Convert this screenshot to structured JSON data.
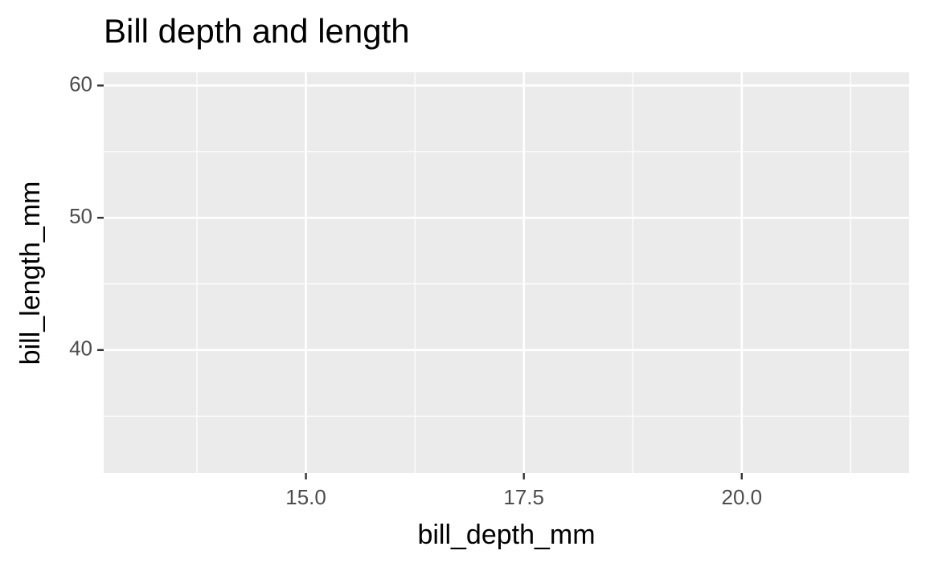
{
  "chart_data": {
    "type": "scatter",
    "title": "Bill depth and length",
    "x_label": "bill_depth_mm",
    "y_label": "bill_length_mm",
    "xlim": [
      12.68,
      21.92
    ],
    "ylim": [
      30.7,
      61.0
    ],
    "xticks": [
      {
        "value": 15,
        "label": "15.0"
      },
      {
        "value": 17.5,
        "label": "17.5"
      },
      {
        "value": 20,
        "label": "20.0"
      }
    ],
    "yticks": [
      40,
      50,
      60
    ],
    "grid": true
  }
}
